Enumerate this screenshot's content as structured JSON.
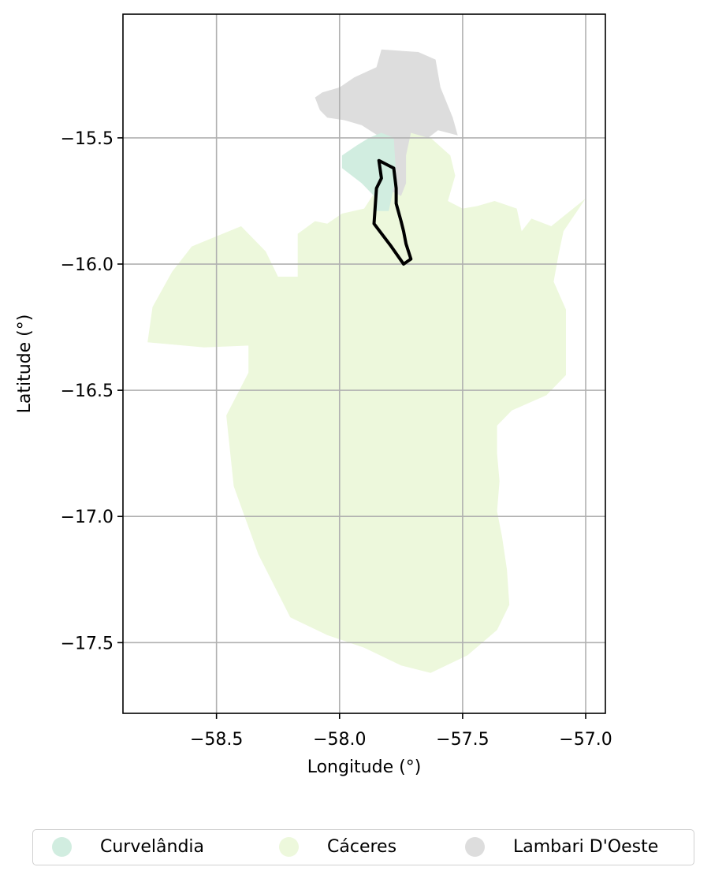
{
  "chart_data": {
    "type": "map",
    "xlabel": "Longitude (°)",
    "ylabel": "Latitude (°)",
    "xlim": [
      -58.88,
      -56.92
    ],
    "ylim": [
      -17.78,
      -15.01
    ],
    "x_ticks": [
      -58.5,
      -58.0,
      -57.5,
      -57.0
    ],
    "x_tick_labels": [
      "−58.5",
      "−58.0",
      "−57.5",
      "−57.0"
    ],
    "y_ticks": [
      -15.5,
      -16.0,
      -16.5,
      -17.0,
      -17.5
    ],
    "y_tick_labels": [
      "−15.5",
      "−16.0",
      "−16.5",
      "−17.0",
      "−17.5"
    ],
    "grid": true,
    "legend_position": "bottom-center",
    "series": [
      {
        "name": "Curvelândia",
        "color": "#d1ede0",
        "polygon": [
          [
            -57.83,
            -15.48
          ],
          [
            -57.78,
            -15.5
          ],
          [
            -57.77,
            -15.65
          ],
          [
            -57.8,
            -15.79
          ],
          [
            -57.85,
            -15.79
          ],
          [
            -57.86,
            -15.73
          ],
          [
            -57.91,
            -15.68
          ],
          [
            -57.99,
            -15.62
          ],
          [
            -57.99,
            -15.57
          ],
          [
            -57.93,
            -15.53
          ],
          [
            -57.88,
            -15.5
          ]
        ]
      },
      {
        "name": "Cáceres",
        "color": "#edf8dc",
        "polygon": [
          [
            -57.73,
            -15.46
          ],
          [
            -57.63,
            -15.5
          ],
          [
            -57.55,
            -15.57
          ],
          [
            -57.53,
            -15.65
          ],
          [
            -57.56,
            -15.75
          ],
          [
            -57.5,
            -15.78
          ],
          [
            -57.44,
            -15.77
          ],
          [
            -57.37,
            -15.75
          ],
          [
            -57.28,
            -15.78
          ],
          [
            -57.26,
            -15.87
          ],
          [
            -57.22,
            -15.82
          ],
          [
            -57.14,
            -15.85
          ],
          [
            -57.0,
            -15.74
          ],
          [
            -57.09,
            -15.87
          ],
          [
            -57.11,
            -15.96
          ],
          [
            -57.13,
            -16.07
          ],
          [
            -57.08,
            -16.18
          ],
          [
            -57.08,
            -16.28
          ],
          [
            -57.08,
            -16.44
          ],
          [
            -57.16,
            -16.52
          ],
          [
            -57.3,
            -16.58
          ],
          [
            -57.36,
            -16.64
          ],
          [
            -57.36,
            -16.75
          ],
          [
            -57.35,
            -16.86
          ],
          [
            -57.36,
            -16.98
          ],
          [
            -57.34,
            -17.08
          ],
          [
            -57.32,
            -17.21
          ],
          [
            -57.31,
            -17.35
          ],
          [
            -57.36,
            -17.45
          ],
          [
            -57.48,
            -17.55
          ],
          [
            -57.63,
            -17.62
          ],
          [
            -57.75,
            -17.59
          ],
          [
            -57.9,
            -17.52
          ],
          [
            -58.05,
            -17.47
          ],
          [
            -58.2,
            -17.4
          ],
          [
            -58.33,
            -17.15
          ],
          [
            -58.43,
            -16.88
          ],
          [
            -58.46,
            -16.6
          ],
          [
            -58.37,
            -16.43
          ],
          [
            -58.37,
            -16.28
          ],
          [
            -58.32,
            -16.3
          ],
          [
            -58.3,
            -16.32
          ],
          [
            -58.55,
            -16.33
          ],
          [
            -58.78,
            -16.31
          ],
          [
            -58.76,
            -16.17
          ],
          [
            -58.68,
            -16.03
          ],
          [
            -58.6,
            -15.93
          ],
          [
            -58.4,
            -15.85
          ],
          [
            -58.3,
            -15.95
          ],
          [
            -58.25,
            -16.05
          ],
          [
            -58.17,
            -16.05
          ],
          [
            -58.17,
            -15.88
          ],
          [
            -58.1,
            -15.83
          ],
          [
            -58.05,
            -15.84
          ],
          [
            -57.99,
            -15.8
          ],
          [
            -57.9,
            -15.78
          ],
          [
            -57.86,
            -15.72
          ],
          [
            -57.82,
            -15.62
          ],
          [
            -57.8,
            -15.48
          ]
        ]
      },
      {
        "name": "Lambari D'Oeste",
        "color": "#dddddd",
        "polygon": [
          [
            -57.83,
            -15.15
          ],
          [
            -57.68,
            -15.16
          ],
          [
            -57.61,
            -15.19
          ],
          [
            -57.59,
            -15.3
          ],
          [
            -57.54,
            -15.42
          ],
          [
            -57.52,
            -15.49
          ],
          [
            -57.6,
            -15.47
          ],
          [
            -57.64,
            -15.5
          ],
          [
            -57.71,
            -15.48
          ],
          [
            -57.73,
            -15.57
          ],
          [
            -57.73,
            -15.68
          ],
          [
            -57.75,
            -15.73
          ],
          [
            -57.79,
            -15.71
          ],
          [
            -57.82,
            -15.59
          ],
          [
            -57.83,
            -15.5
          ],
          [
            -57.91,
            -15.45
          ],
          [
            -57.98,
            -15.43
          ],
          [
            -58.05,
            -15.42
          ],
          [
            -58.08,
            -15.39
          ],
          [
            -58.1,
            -15.34
          ],
          [
            -58.07,
            -15.32
          ],
          [
            -58.0,
            -15.3
          ],
          [
            -57.94,
            -15.26
          ],
          [
            -57.85,
            -15.22
          ]
        ]
      }
    ],
    "outline": {
      "color": "#000000",
      "polygon": [
        [
          -57.84,
          -15.59
        ],
        [
          -57.82,
          -15.6
        ],
        [
          -57.8,
          -15.61
        ],
        [
          -57.78,
          -15.62
        ],
        [
          -57.77,
          -15.7
        ],
        [
          -57.77,
          -15.76
        ],
        [
          -57.75,
          -15.83
        ],
        [
          -57.74,
          -15.87
        ],
        [
          -57.73,
          -15.92
        ],
        [
          -57.71,
          -15.98
        ],
        [
          -57.74,
          -16.0
        ],
        [
          -57.79,
          -15.93
        ],
        [
          -57.86,
          -15.84
        ],
        [
          -57.85,
          -15.7
        ],
        [
          -57.83,
          -15.66
        ]
      ]
    }
  }
}
